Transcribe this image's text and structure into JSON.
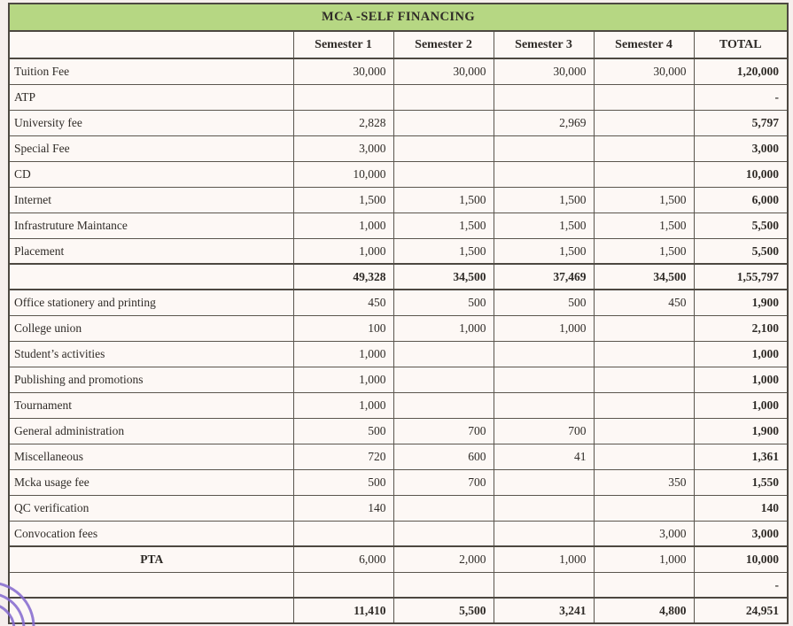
{
  "document": {
    "title": "MCA -SELF FINANCING",
    "colors": {
      "page_bg": "#f6efed",
      "table_bg": "#fdf8f5",
      "title_bg": "#b6d783",
      "border": "#5b564e",
      "border_heavy": "#4d4841",
      "text": "#2f2b27",
      "pen_mark": "#8468cf"
    },
    "table": {
      "columns": [
        "",
        "Semester 1",
        "Semester 2",
        "Semester 3",
        "Semester 4",
        "TOTAL"
      ],
      "rows": [
        {
          "label": "Tuition Fee",
          "values": [
            "30,000",
            "30,000",
            "30,000",
            "30,000"
          ],
          "total": "1,20,000",
          "bold": false,
          "center_label": false,
          "sep": false
        },
        {
          "label": "ATP",
          "values": [
            "",
            "",
            "",
            ""
          ],
          "total": "-",
          "bold": false,
          "center_label": false,
          "sep": false
        },
        {
          "label": "University fee",
          "values": [
            "2,828",
            "",
            "2,969",
            ""
          ],
          "total": "5,797",
          "bold": false,
          "center_label": false,
          "sep": false
        },
        {
          "label": "Special Fee",
          "values": [
            "3,000",
            "",
            "",
            ""
          ],
          "total": "3,000",
          "bold": false,
          "center_label": false,
          "sep": false
        },
        {
          "label": "CD",
          "values": [
            "10,000",
            "",
            "",
            ""
          ],
          "total": "10,000",
          "bold": false,
          "center_label": false,
          "sep": false
        },
        {
          "label": "Internet",
          "values": [
            "1,500",
            "1,500",
            "1,500",
            "1,500"
          ],
          "total": "6,000",
          "bold": false,
          "center_label": false,
          "sep": false
        },
        {
          "label": "Infrastruture Maintance",
          "values": [
            "1,000",
            "1,500",
            "1,500",
            "1,500"
          ],
          "total": "5,500",
          "bold": false,
          "center_label": false,
          "sep": false
        },
        {
          "label": "Placement",
          "values": [
            "1,000",
            "1,500",
            "1,500",
            "1,500"
          ],
          "total": "5,500",
          "bold": false,
          "center_label": false,
          "sep": false
        },
        {
          "label": "",
          "values": [
            "49,328",
            "34,500",
            "37,469",
            "34,500"
          ],
          "total": "1,55,797",
          "bold": true,
          "center_label": false,
          "sep": true
        },
        {
          "label": "Office stationery and printing",
          "values": [
            "450",
            "500",
            "500",
            "450"
          ],
          "total": "1,900",
          "bold": false,
          "center_label": false,
          "sep": true
        },
        {
          "label": "College union",
          "values": [
            "100",
            "1,000",
            "1,000",
            ""
          ],
          "total": "2,100",
          "bold": false,
          "center_label": false,
          "sep": false
        },
        {
          "label": "Student’s activities",
          "values": [
            "1,000",
            "",
            "",
            ""
          ],
          "total": "1,000",
          "bold": false,
          "center_label": false,
          "sep": false
        },
        {
          "label": "Publishing and promotions",
          "values": [
            "1,000",
            "",
            "",
            ""
          ],
          "total": "1,000",
          "bold": false,
          "center_label": false,
          "sep": false
        },
        {
          "label": "Tournament",
          "values": [
            "1,000",
            "",
            "",
            ""
          ],
          "total": "1,000",
          "bold": false,
          "center_label": false,
          "sep": false
        },
        {
          "label": "General administration",
          "values": [
            "500",
            "700",
            "700",
            ""
          ],
          "total": "1,900",
          "bold": false,
          "center_label": false,
          "sep": false
        },
        {
          "label": "Miscellaneous",
          "values": [
            "720",
            "600",
            "41",
            ""
          ],
          "total": "1,361",
          "bold": false,
          "center_label": false,
          "sep": false
        },
        {
          "label": "Mcka usage fee",
          "values": [
            "500",
            "700",
            "",
            "350"
          ],
          "total": "1,550",
          "bold": false,
          "center_label": false,
          "sep": false
        },
        {
          "label": "QC verification",
          "values": [
            "140",
            "",
            "",
            ""
          ],
          "total": "140",
          "bold": false,
          "center_label": false,
          "sep": false
        },
        {
          "label": "Convocation fees",
          "values": [
            "",
            "",
            "",
            "3,000"
          ],
          "total": "3,000",
          "bold": false,
          "center_label": false,
          "sep": false
        },
        {
          "label": "PTA",
          "values": [
            "6,000",
            "2,000",
            "1,000",
            "1,000"
          ],
          "total": "10,000",
          "bold": false,
          "center_label": true,
          "sep": true
        },
        {
          "label": "",
          "values": [
            "",
            "",
            "",
            ""
          ],
          "total": "-",
          "bold": false,
          "center_label": false,
          "sep": false
        },
        {
          "label": "",
          "values": [
            "11,410",
            "5,500",
            "3,241",
            "4,800"
          ],
          "total": "24,951",
          "bold": true,
          "center_label": false,
          "sep": true
        }
      ]
    }
  }
}
